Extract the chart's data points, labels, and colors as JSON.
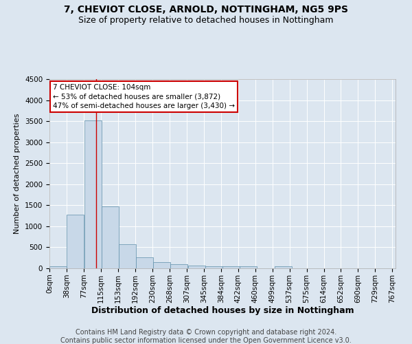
{
  "title1": "7, CHEVIOT CLOSE, ARNOLD, NOTTINGHAM, NG5 9PS",
  "title2": "Size of property relative to detached houses in Nottingham",
  "xlabel": "Distribution of detached houses by size in Nottingham",
  "ylabel": "Number of detached properties",
  "footnote1": "Contains HM Land Registry data © Crown copyright and database right 2024.",
  "footnote2": "Contains public sector information licensed under the Open Government Licence v3.0.",
  "annotation_title": "7 CHEVIOT CLOSE: 104sqm",
  "annotation_line1": "← 53% of detached houses are smaller (3,872)",
  "annotation_line2": "47% of semi-detached houses are larger (3,430) →",
  "property_size": 104,
  "bar_left_edges": [
    0,
    38,
    77,
    115,
    153,
    192,
    230,
    268,
    307,
    345,
    384,
    422,
    460,
    499,
    537,
    575,
    614,
    652,
    690,
    729
  ],
  "bar_heights": [
    50,
    1270,
    3510,
    1480,
    570,
    255,
    150,
    95,
    60,
    45,
    45,
    55,
    5,
    45,
    5,
    0,
    0,
    0,
    0,
    0
  ],
  "bin_width": 38,
  "bar_color": "#c8d8e8",
  "bar_edge_color": "#5f8faa",
  "vline_color": "#cc0000",
  "vline_x": 104,
  "ylim": [
    0,
    4500
  ],
  "yticks": [
    0,
    500,
    1000,
    1500,
    2000,
    2500,
    3000,
    3500,
    4000,
    4500
  ],
  "xtick_labels": [
    "0sqm",
    "38sqm",
    "77sqm",
    "115sqm",
    "153sqm",
    "192sqm",
    "230sqm",
    "268sqm",
    "307sqm",
    "345sqm",
    "384sqm",
    "422sqm",
    "460sqm",
    "499sqm",
    "537sqm",
    "575sqm",
    "614sqm",
    "652sqm",
    "690sqm",
    "729sqm",
    "767sqm"
  ],
  "background_color": "#dce6f0",
  "plot_bg_color": "#dce6f0",
  "grid_color": "#ffffff",
  "annotation_box_color": "#ffffff",
  "annotation_box_edge": "#cc0000",
  "title1_fontsize": 10,
  "title2_fontsize": 9,
  "xlabel_fontsize": 9,
  "ylabel_fontsize": 8,
  "footnote_fontsize": 7,
  "tick_fontsize": 7.5,
  "annot_fontsize": 7.5
}
